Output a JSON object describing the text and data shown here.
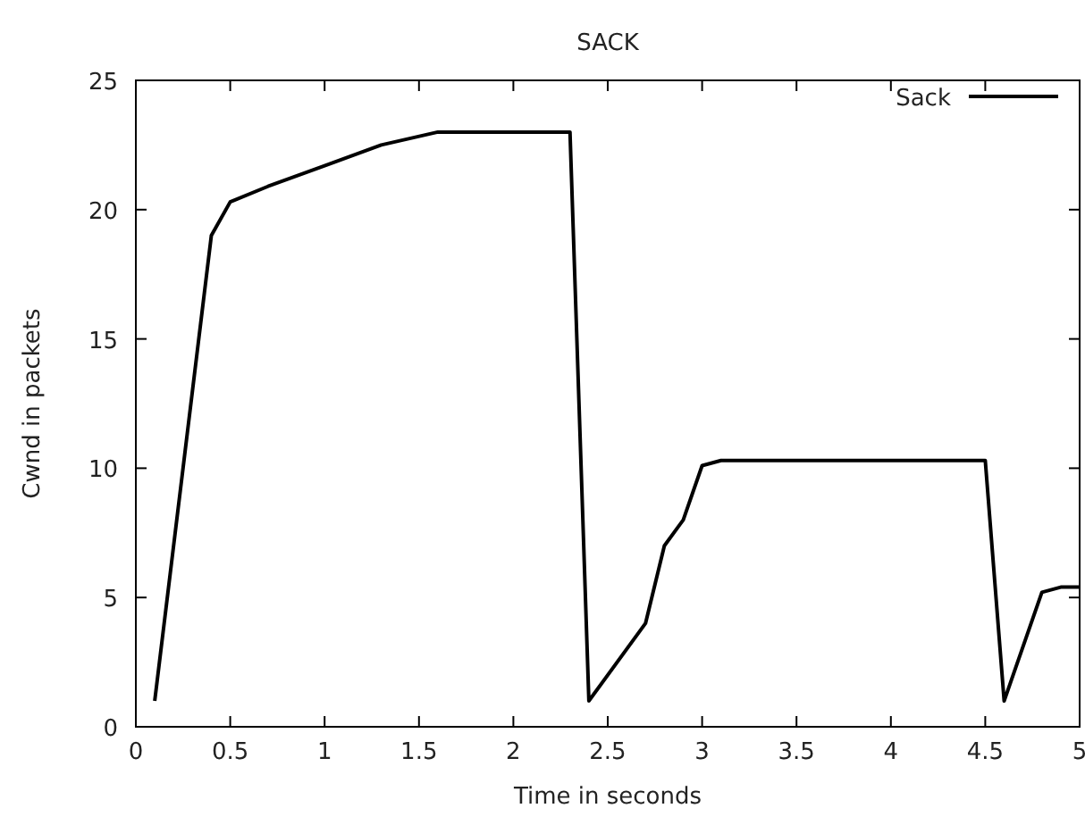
{
  "chart_data": {
    "type": "line",
    "title": "SACK",
    "xlabel": "Time in seconds",
    "ylabel": "Cwnd in packets",
    "xlim": [
      0,
      5
    ],
    "ylim": [
      0,
      25
    ],
    "xticks": [
      0,
      0.5,
      1,
      1.5,
      2,
      2.5,
      3,
      3.5,
      4,
      4.5,
      5
    ],
    "yticks": [
      0,
      5,
      10,
      15,
      20,
      25
    ],
    "legend": "top right",
    "grid": false,
    "series": [
      {
        "name": "Sack",
        "color": "#000000",
        "x": [
          0.1,
          0.4,
          0.5,
          0.7,
          1.0,
          1.3,
          1.6,
          2.3,
          2.4,
          2.7,
          2.8,
          2.9,
          3.0,
          3.1,
          4.5,
          4.6,
          4.8,
          4.9,
          5.0
        ],
        "values": [
          1,
          19,
          20.3,
          20.9,
          21.7,
          22.5,
          23,
          23,
          1,
          4,
          7,
          8,
          10.1,
          10.3,
          10.3,
          1,
          5.2,
          5.4,
          5.4
        ]
      }
    ]
  }
}
